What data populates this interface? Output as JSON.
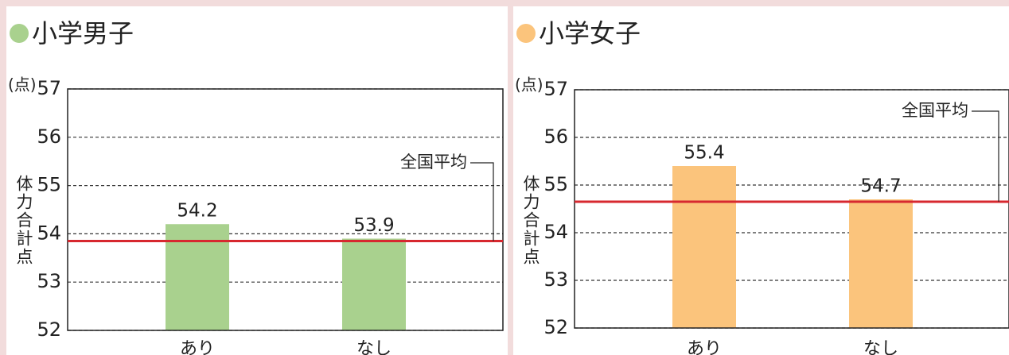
{
  "chart_data": [
    {
      "type": "bar",
      "title": "小学男子",
      "y_unit": "(点)",
      "ylabel": "体力合計点",
      "categories": [
        "あり",
        "なし"
      ],
      "values": [
        54.2,
        53.9
      ],
      "color": "#a9d18e",
      "ylim": [
        52,
        57
      ],
      "yticks": [
        52,
        53,
        54,
        55,
        56,
        57
      ],
      "grid": true,
      "reference_line": {
        "label": "全国平均",
        "value": 53.85,
        "color": "#d7282f"
      }
    },
    {
      "type": "bar",
      "title": "小学女子",
      "y_unit": "(点)",
      "ylabel": "体力合計点",
      "categories": [
        "あり",
        "なし"
      ],
      "values": [
        55.4,
        54.7
      ],
      "color": "#fbc47c",
      "ylim": [
        52,
        57
      ],
      "yticks": [
        52,
        53,
        54,
        55,
        56,
        57
      ],
      "grid": true,
      "reference_line": {
        "label": "全国平均",
        "value": 54.65,
        "color": "#d7282f"
      }
    }
  ]
}
